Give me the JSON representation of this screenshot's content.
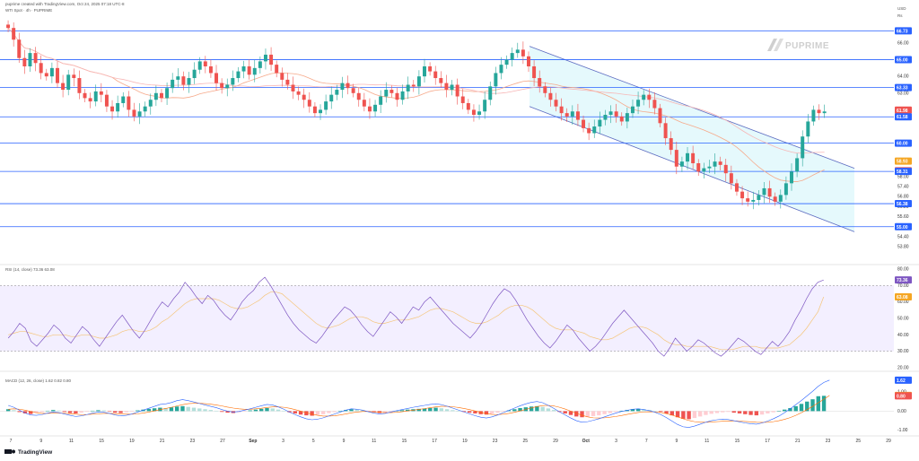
{
  "header": {
    "published_line": "puprime created with TradingView.com, Oct 24, 2025 07:18 UTC-8",
    "symbol_line": "WTI Spot · 4h · PUPRIME",
    "currency": "USD",
    "label": "Rs"
  },
  "brand": {
    "name": "PUPRIME"
  },
  "footer": {
    "tradingview": "TradingView"
  },
  "rsi_legend": "RSI (14, close)  73.36  63.08",
  "macd_legend": "MACD (12, 26, close)  1.62  0.82  0.80",
  "colors": {
    "up": "#26a69a",
    "down": "#ef5350",
    "hline": "#2962ff",
    "channel_fill": "#dff7fb",
    "rsi_band": "#f3efff",
    "rsi_line": "#7e57c2",
    "ma_orange": "#f6a98a",
    "ma_pink": "#f7b6b6"
  },
  "chart_data": [
    {
      "type": "candlestick",
      "name": "price",
      "ylim": [
        53.0,
        67.5
      ],
      "y_ticks": [
        "66.00",
        "65.00",
        "64.00",
        "63.00",
        "62.00",
        "58.00",
        "57.40",
        "56.80",
        "56.20",
        "55.60",
        "55.00",
        "54.40",
        "53.80"
      ],
      "horizontal_levels": [
        66.73,
        65.0,
        63.33,
        61.58,
        60.0,
        58.31,
        56.38,
        55.0
      ],
      "level_labels": [
        {
          "value": 66.73,
          "text": "66.73",
          "bg": "#2962ff"
        },
        {
          "value": 65.0,
          "text": "65.00",
          "bg": "#2962ff"
        },
        {
          "value": 63.33,
          "text": "63.33",
          "bg": "#2962ff"
        },
        {
          "value": 61.98,
          "text": "61.98",
          "bg": "#ef5350"
        },
        {
          "value": 61.58,
          "text": "61.58",
          "bg": "#2962ff"
        },
        {
          "value": 60.0,
          "text": "60.00",
          "bg": "#2962ff"
        },
        {
          "value": 58.93,
          "text": "58.93",
          "bg": "#f5a623"
        },
        {
          "value": 58.35,
          "text": "58.35",
          "bg": "#ef5350"
        },
        {
          "value": 58.31,
          "text": "58.31",
          "bg": "#2962ff"
        },
        {
          "value": 56.38,
          "text": "56.38",
          "bg": "#2962ff"
        },
        {
          "value": 55.0,
          "text": "55.00",
          "bg": "#2962ff"
        }
      ],
      "channel": {
        "upper": [
          [
            590,
            65.8
          ],
          [
            952,
            58.5
          ]
        ],
        "lower": [
          [
            590,
            62.2
          ],
          [
            952,
            54.7
          ]
        ]
      },
      "closes": [
        66.9,
        66.2,
        65.1,
        64.6,
        65.4,
        64.8,
        64.2,
        64.0,
        64.5,
        63.6,
        63.2,
        64.1,
        63.9,
        63.0,
        62.7,
        62.5,
        63.1,
        62.9,
        62.2,
        61.9,
        62.4,
        62.8,
        62.0,
        61.6,
        61.9,
        62.2,
        62.6,
        63.0,
        62.7,
        63.3,
        63.8,
        64.0,
        63.5,
        63.9,
        64.4,
        64.9,
        64.6,
        64.2,
        63.6,
        63.3,
        63.5,
        63.9,
        64.3,
        64.6,
        64.1,
        64.5,
        64.9,
        65.3,
        64.7,
        64.2,
        63.8,
        63.5,
        63.1,
        62.9,
        62.6,
        62.2,
        61.8,
        62.0,
        62.5,
        62.9,
        63.2,
        63.6,
        63.3,
        63.0,
        62.6,
        62.2,
        61.9,
        62.3,
        62.8,
        63.2,
        63.0,
        62.6,
        63.1,
        63.5,
        63.4,
        64.0,
        64.6,
        64.3,
        63.9,
        63.6,
        63.2,
        63.5,
        62.8,
        62.4,
        62.0,
        61.7,
        61.9,
        62.6,
        63.4,
        64.2,
        64.7,
        65.0,
        65.4,
        65.6,
        65.2,
        64.6,
        63.9,
        63.4,
        63.0,
        62.6,
        62.2,
        61.8,
        61.6,
        61.9,
        61.4,
        60.9,
        60.6,
        61.0,
        61.4,
        61.7,
        61.9,
        61.6,
        61.3,
        61.8,
        62.2,
        62.6,
        62.9,
        62.6,
        62.1,
        61.2,
        60.3,
        59.6,
        58.6,
        58.9,
        59.4,
        58.8,
        58.3,
        58.5,
        58.6,
        58.9,
        58.7,
        58.2,
        57.6,
        57.1,
        56.7,
        56.5,
        56.6,
        56.9,
        57.3,
        56.8,
        56.5,
        56.9,
        57.6,
        58.3,
        59.1,
        60.4,
        61.3,
        62.0,
        61.8,
        61.9
      ]
    },
    {
      "type": "line",
      "name": "RSI (14, close)",
      "ylim": [
        20,
        80
      ],
      "y_ticks": [
        "80.00",
        "70.00",
        "60.00",
        "50.00",
        "40.00",
        "30.00",
        "20.00"
      ],
      "band": [
        30,
        70
      ],
      "last": [
        {
          "value": 73.36,
          "text": "73.36",
          "bg": "#7e57c2"
        },
        {
          "value": 63.08,
          "text": "63.08",
          "bg": "#f5a623"
        }
      ],
      "values": [
        38,
        42,
        47,
        44,
        36,
        33,
        37,
        41,
        46,
        43,
        38,
        35,
        40,
        45,
        42,
        37,
        33,
        38,
        43,
        48,
        52,
        47,
        42,
        38,
        43,
        49,
        55,
        60,
        57,
        62,
        66,
        72,
        68,
        63,
        59,
        64,
        61,
        56,
        52,
        49,
        54,
        60,
        64,
        67,
        72,
        75,
        70,
        64,
        58,
        52,
        47,
        43,
        40,
        37,
        35,
        39,
        44,
        49,
        53,
        57,
        55,
        51,
        46,
        42,
        39,
        44,
        49,
        54,
        51,
        47,
        52,
        57,
        55,
        60,
        63,
        59,
        55,
        51,
        47,
        44,
        41,
        38,
        42,
        47,
        53,
        59,
        64,
        68,
        66,
        61,
        55,
        49,
        44,
        39,
        35,
        32,
        36,
        41,
        46,
        43,
        38,
        34,
        30,
        33,
        37,
        42,
        47,
        51,
        55,
        51,
        47,
        43,
        39,
        35,
        30,
        27,
        32,
        38,
        34,
        30,
        33,
        37,
        35,
        32,
        29,
        27,
        30,
        34,
        38,
        36,
        33,
        30,
        28,
        32,
        36,
        33,
        37,
        42,
        49,
        55,
        62,
        68,
        72,
        73.36
      ],
      "signal": [
        40,
        41,
        42,
        42,
        41,
        40,
        39,
        39,
        40,
        40,
        40,
        39,
        39,
        40,
        40,
        39,
        38,
        38,
        39,
        40,
        42,
        43,
        43,
        42,
        42,
        43,
        45,
        48,
        50,
        53,
        56,
        59,
        61,
        62,
        62,
        62,
        62,
        61,
        59,
        57,
        56,
        56,
        57,
        59,
        61,
        64,
        66,
        66,
        65,
        62,
        59,
        56,
        53,
        50,
        47,
        45,
        44,
        45,
        46,
        48,
        50,
        51,
        51,
        50,
        48,
        47,
        47,
        48,
        49,
        49,
        49,
        50,
        51,
        53,
        55,
        56,
        56,
        55,
        54,
        52,
        50,
        48,
        47,
        47,
        48,
        50,
        52,
        55,
        57,
        58,
        58,
        57,
        55,
        52,
        49,
        46,
        44,
        43,
        43,
        43,
        42,
        41,
        39,
        38,
        37,
        37,
        38,
        40,
        42,
        44,
        45,
        45,
        44,
        42,
        40,
        37,
        35,
        34,
        34,
        33,
        33,
        33,
        33,
        33,
        32,
        31,
        31,
        31,
        32,
        33,
        33,
        33,
        32,
        32,
        32,
        32,
        33,
        34,
        37,
        40,
        44,
        49,
        54,
        63.08
      ]
    },
    {
      "type": "histogram+lines",
      "name": "MACD (12, 26, close)",
      "ylim": [
        -1.2,
        1.8
      ],
      "y_ticks": [
        "1.00",
        "0.00",
        "-1.00"
      ],
      "last": [
        {
          "value": 1.62,
          "text": "1.62",
          "bg": "#2962ff"
        },
        {
          "value": 0.82,
          "text": "0.82",
          "bg": "#f5a623"
        },
        {
          "value": 0.8,
          "text": "0.80",
          "bg": "#ef5350"
        }
      ],
      "histogram": [
        0.1,
        0.05,
        -0.05,
        -0.12,
        -0.15,
        -0.1,
        -0.05,
        0.02,
        0.06,
        0.03,
        -0.04,
        -0.1,
        -0.12,
        -0.08,
        -0.03,
        0.02,
        0.05,
        0.04,
        -0.02,
        -0.08,
        -0.1,
        -0.06,
        -0.02,
        0.04,
        0.08,
        0.12,
        0.15,
        0.18,
        0.16,
        0.2,
        0.24,
        0.26,
        0.22,
        0.18,
        0.14,
        0.1,
        0.06,
        0.02,
        -0.04,
        -0.08,
        -0.1,
        -0.06,
        -0.02,
        0.04,
        0.08,
        0.12,
        0.16,
        0.14,
        0.08,
        0.02,
        -0.06,
        -0.12,
        -0.18,
        -0.22,
        -0.24,
        -0.2,
        -0.16,
        -0.1,
        -0.05,
        0.02,
        0.06,
        0.1,
        0.08,
        0.04,
        -0.02,
        -0.06,
        -0.1,
        -0.08,
        -0.04,
        0.02,
        0.05,
        0.08,
        0.1,
        0.12,
        0.14,
        0.16,
        0.18,
        0.15,
        0.1,
        0.05,
        0.0,
        -0.04,
        -0.08,
        -0.12,
        -0.16,
        -0.18,
        -0.14,
        -0.08,
        -0.02,
        0.04,
        0.1,
        0.16,
        0.2,
        0.24,
        0.26,
        0.22,
        0.14,
        0.06,
        -0.04,
        -0.12,
        -0.2,
        -0.28,
        -0.32,
        -0.3,
        -0.26,
        -0.22,
        -0.16,
        -0.1,
        -0.04,
        0.02,
        0.06,
        0.1,
        0.12,
        0.1,
        0.06,
        0.02,
        -0.04,
        -0.12,
        -0.22,
        -0.32,
        -0.4,
        -0.42,
        -0.36,
        -0.28,
        -0.2,
        -0.14,
        -0.1,
        -0.06,
        -0.04,
        -0.08,
        -0.12,
        -0.16,
        -0.2,
        -0.22,
        -0.18,
        -0.12,
        -0.06,
        0.0,
        0.08,
        0.16,
        0.26,
        0.38,
        0.5,
        0.62,
        0.78,
        0.8
      ],
      "macd": [
        0.3,
        0.2,
        0.05,
        -0.1,
        -0.2,
        -0.22,
        -0.18,
        -0.1,
        -0.05,
        -0.08,
        -0.15,
        -0.22,
        -0.28,
        -0.25,
        -0.18,
        -0.1,
        -0.05,
        -0.06,
        -0.12,
        -0.2,
        -0.25,
        -0.22,
        -0.15,
        -0.05,
        0.05,
        0.15,
        0.25,
        0.35,
        0.38,
        0.45,
        0.55,
        0.6,
        0.55,
        0.48,
        0.4,
        0.32,
        0.25,
        0.18,
        0.08,
        0.0,
        -0.05,
        -0.02,
        0.05,
        0.12,
        0.2,
        0.28,
        0.35,
        0.32,
        0.22,
        0.1,
        -0.05,
        -0.18,
        -0.3,
        -0.4,
        -0.45,
        -0.42,
        -0.35,
        -0.25,
        -0.15,
        -0.05,
        0.05,
        0.12,
        0.1,
        0.05,
        -0.03,
        -0.1,
        -0.15,
        -0.12,
        -0.05,
        0.02,
        0.08,
        0.14,
        0.2,
        0.25,
        0.3,
        0.35,
        0.38,
        0.34,
        0.26,
        0.16,
        0.06,
        -0.04,
        -0.14,
        -0.24,
        -0.32,
        -0.36,
        -0.3,
        -0.2,
        -0.08,
        0.04,
        0.16,
        0.28,
        0.38,
        0.46,
        0.5,
        0.44,
        0.3,
        0.14,
        -0.04,
        -0.2,
        -0.36,
        -0.5,
        -0.58,
        -0.55,
        -0.48,
        -0.4,
        -0.3,
        -0.2,
        -0.1,
        -0.02,
        0.04,
        0.1,
        0.12,
        0.08,
        0.02,
        -0.06,
        -0.18,
        -0.34,
        -0.52,
        -0.7,
        -0.82,
        -0.85,
        -0.78,
        -0.68,
        -0.58,
        -0.5,
        -0.45,
        -0.42,
        -0.44,
        -0.5,
        -0.56,
        -0.62,
        -0.66,
        -0.68,
        -0.62,
        -0.52,
        -0.4,
        -0.26,
        -0.08,
        0.12,
        0.34,
        0.56,
        0.8,
        1.04,
        1.3,
        1.5,
        1.62
      ],
      "signal": [
        0.1,
        0.12,
        0.1,
        0.05,
        -0.02,
        -0.08,
        -0.12,
        -0.12,
        -0.1,
        -0.1,
        -0.11,
        -0.13,
        -0.16,
        -0.18,
        -0.18,
        -0.16,
        -0.14,
        -0.12,
        -0.12,
        -0.13,
        -0.15,
        -0.16,
        -0.16,
        -0.14,
        -0.1,
        -0.05,
        0.01,
        0.08,
        0.14,
        0.2,
        0.27,
        0.34,
        0.39,
        0.41,
        0.41,
        0.39,
        0.36,
        0.32,
        0.27,
        0.21,
        0.16,
        0.12,
        0.1,
        0.1,
        0.12,
        0.15,
        0.19,
        0.22,
        0.22,
        0.2,
        0.15,
        0.08,
        0.0,
        -0.08,
        -0.16,
        -0.22,
        -0.26,
        -0.26,
        -0.24,
        -0.2,
        -0.15,
        -0.09,
        -0.05,
        -0.02,
        -0.02,
        -0.04,
        -0.06,
        -0.08,
        -0.08,
        -0.06,
        -0.03,
        0.01,
        0.05,
        0.09,
        0.13,
        0.18,
        0.22,
        0.25,
        0.25,
        0.23,
        0.19,
        0.14,
        0.08,
        0.01,
        -0.06,
        -0.13,
        -0.17,
        -0.18,
        -0.16,
        -0.12,
        -0.06,
        0.01,
        0.09,
        0.17,
        0.24,
        0.29,
        0.3,
        0.27,
        0.2,
        0.11,
        0.0,
        -0.11,
        -0.22,
        -0.3,
        -0.35,
        -0.36,
        -0.35,
        -0.32,
        -0.28,
        -0.23,
        -0.17,
        -0.12,
        -0.07,
        -0.04,
        -0.03,
        -0.04,
        -0.07,
        -0.13,
        -0.21,
        -0.3,
        -0.4,
        -0.49,
        -0.55,
        -0.58,
        -0.58,
        -0.57,
        -0.55,
        -0.53,
        -0.51,
        -0.51,
        -0.52,
        -0.54,
        -0.56,
        -0.58,
        -0.59,
        -0.58,
        -0.55,
        -0.5,
        -0.43,
        -0.34,
        -0.22,
        -0.08,
        0.08,
        0.25,
        0.44,
        0.62,
        0.82
      ]
    }
  ],
  "x_axis": {
    "ticks": [
      "7",
      "9",
      "11",
      "15",
      "19",
      "21",
      "23",
      "27",
      "Sep",
      "3",
      "5",
      "9",
      "11",
      "15",
      "17",
      "19",
      "23",
      "25",
      "29",
      "Oct",
      "3",
      "7",
      "9",
      "11",
      "15",
      "17",
      "21",
      "23",
      "25",
      "29"
    ]
  }
}
